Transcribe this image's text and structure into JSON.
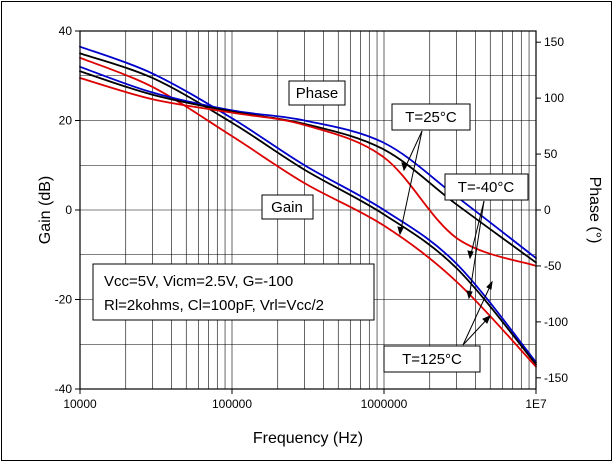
{
  "chart_data": {
    "type": "line",
    "xlabel": "Frequency (Hz)",
    "ylabel": "Gain (dB)",
    "y2label": "Phase (°)",
    "xscale": "log",
    "xlim": [
      10000,
      10000000
    ],
    "ylim": [
      -40,
      40
    ],
    "y2lim": [
      -160,
      160
    ],
    "x_tick_labels": [
      "10000",
      "100000",
      "1000000",
      "1E7"
    ],
    "y_ticks": [
      -40,
      -20,
      0,
      20,
      40
    ],
    "y2_ticks": [
      -150,
      -100,
      -50,
      0,
      50,
      100,
      150
    ],
    "grid": true,
    "colors": {
      "T=-40°C": "#0000cc",
      "T=25°C": "#000000",
      "T=125°C": "#dd0000"
    },
    "series": [
      {
        "name": "T=-40°C",
        "quantity": "gain",
        "axis": "left",
        "x": [
          10000,
          30000,
          100000,
          300000,
          1000000,
          3000000,
          10000000
        ],
        "y": [
          36.5,
          30.5,
          20.5,
          10,
          0,
          -12,
          -34
        ]
      },
      {
        "name": "T=25°C",
        "quantity": "gain",
        "axis": "left",
        "x": [
          10000,
          30000,
          100000,
          300000,
          1000000,
          3000000,
          10000000
        ],
        "y": [
          35,
          29.5,
          19.5,
          9,
          -1,
          -13,
          -34.5
        ]
      },
      {
        "name": "T=125°C",
        "quantity": "gain",
        "axis": "left",
        "x": [
          10000,
          30000,
          100000,
          300000,
          1000000,
          3000000,
          10000000
        ],
        "y": [
          34,
          27.5,
          16.5,
          6,
          -3.5,
          -16,
          -35
        ]
      },
      {
        "name": "T=-40°C",
        "quantity": "phase",
        "axis": "right",
        "x": [
          10000,
          30000,
          100000,
          300000,
          1000000,
          3000000,
          10000000
        ],
        "y": [
          128,
          105,
          89,
          80,
          60,
          12,
          -43
        ]
      },
      {
        "name": "T=25°C",
        "quantity": "phase",
        "axis": "right",
        "x": [
          10000,
          30000,
          100000,
          300000,
          1000000,
          3000000,
          10000000
        ],
        "y": [
          124,
          103,
          88,
          77,
          54,
          5,
          -47
        ]
      },
      {
        "name": "T=125°C",
        "quantity": "phase",
        "axis": "right",
        "x": [
          10000,
          30000,
          100000,
          300000,
          1000000,
          3000000,
          10000000
        ],
        "y": [
          118,
          99,
          87,
          76,
          47,
          -25,
          -50
        ]
      }
    ],
    "annotations": {
      "phase": "Phase",
      "gain": "Gain",
      "t25": "T=25°C",
      "tm40": "T=-40°C",
      "t125": "T=125°C",
      "conditions_line1": "Vcc=5V, Vicm=2.5V, G=-100",
      "conditions_line2": "Rl=2kohms, Cl=100pF,  Vrl=Vcc/2"
    }
  }
}
